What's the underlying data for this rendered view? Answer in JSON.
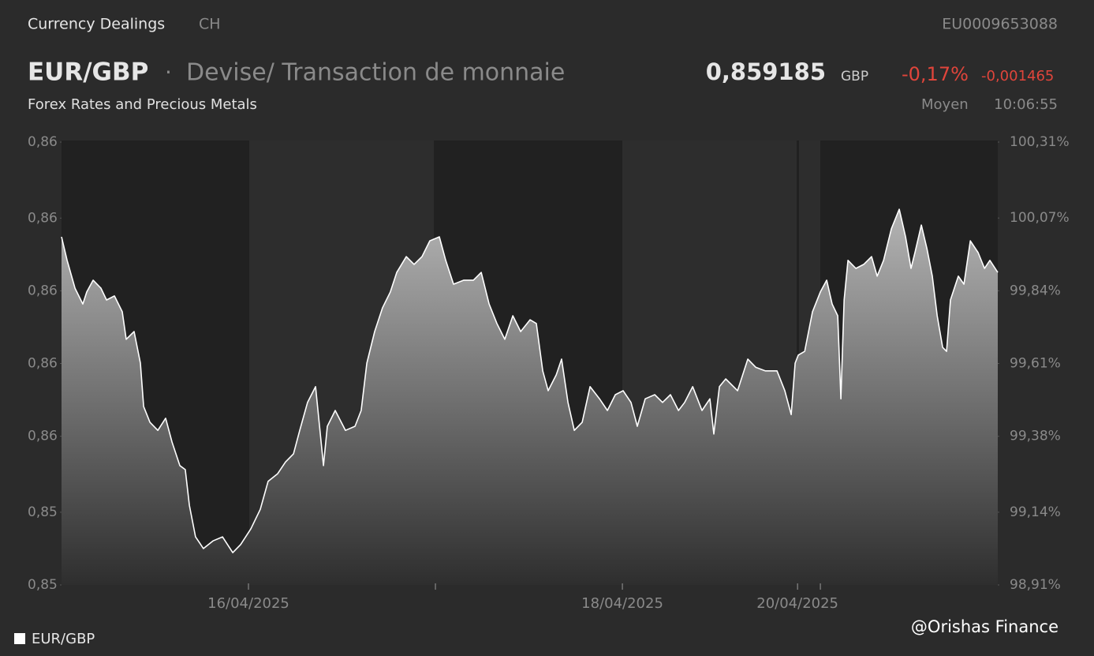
{
  "header": {
    "source": "Currency Dealings",
    "market": "CH",
    "isin": "EU0009653088",
    "symbol": "EUR/GBP",
    "description": "Devise/ Transaction de monnaie",
    "price": "0,859185",
    "currency": "GBP",
    "change_pct": "-0,17%",
    "change_abs": "-0,001465",
    "category": "Forex Rates and Precious Metals",
    "price_type": "Moyen",
    "time": "10:06:55"
  },
  "chart_data": {
    "type": "area",
    "x": [
      0,
      0.03,
      0.072,
      0.114,
      0.135,
      0.169,
      0.211,
      0.241,
      0.283,
      0.325,
      0.346,
      0.388,
      0.422,
      0.439,
      0.473,
      0.515,
      0.557,
      0.591,
      0.633,
      0.662,
      0.684,
      0.717,
      0.759,
      0.81,
      0.861,
      0.916,
      0.958,
      1.013,
      1.063,
      1.105,
      1.156,
      1.198,
      1.241,
      1.274,
      1.316,
      1.359,
      1.401,
      1.422,
      1.464,
      1.519,
      1.57,
      1.603,
      1.633,
      1.675,
      1.717,
      1.759,
      1.793,
      1.844,
      1.886,
      1.928,
      1.97,
      2.021,
      2.055,
      2.097,
      2.152,
      2.203,
      2.245,
      2.287,
      2.329,
      2.371,
      2.414,
      2.456,
      2.506,
      2.54,
      2.574,
      2.603,
      2.646,
      2.675,
      2.709,
      2.743,
      2.785,
      2.827,
      2.878,
      2.92,
      2.962,
      3.004,
      3.046,
      3.08,
      3.122,
      3.173,
      3.215,
      3.257,
      3.3,
      3.333,
      3.376,
      3.426,
      3.468,
      3.489,
      3.519,
      3.553,
      3.616,
      3.671,
      3.713,
      3.764,
      3.827,
      3.869,
      3.903,
      3.924,
      3.941,
      3.975,
      4.017,
      4.059,
      4.093,
      4.122,
      4.152,
      4.169,
      4.186,
      4.207,
      4.249,
      4.291,
      4.333,
      4.363,
      4.397,
      4.439,
      4.481,
      4.515,
      4.544,
      4.565,
      4.599,
      4.629,
      4.658,
      4.684,
      4.713,
      4.734,
      4.755,
      4.797,
      4.827,
      4.861,
      4.903,
      4.937,
      4.966,
      5.008
    ],
    "series": [
      {
        "name": "EUR/GBP",
        "color": "#ffffff",
        "values": [
          0.86129,
          0.86065,
          0.85989,
          0.85946,
          0.85979,
          0.86011,
          0.85989,
          0.85957,
          0.85968,
          0.85925,
          0.8585,
          0.85871,
          0.85785,
          0.85667,
          0.85624,
          0.85602,
          0.85635,
          0.8557,
          0.85506,
          0.85495,
          0.85398,
          0.85312,
          0.8528,
          0.85301,
          0.85312,
          0.85269,
          0.85291,
          0.85334,
          0.85387,
          0.85463,
          0.85484,
          0.85516,
          0.85538,
          0.85602,
          0.85678,
          0.85721,
          0.85506,
          0.85613,
          0.85656,
          0.85602,
          0.85613,
          0.85656,
          0.85785,
          0.85871,
          0.85936,
          0.85979,
          0.86032,
          0.86075,
          0.86054,
          0.86075,
          0.86118,
          0.86129,
          0.86065,
          0.86,
          0.86011,
          0.86011,
          0.86032,
          0.85946,
          0.85893,
          0.8585,
          0.85914,
          0.85871,
          0.85903,
          0.85893,
          0.85764,
          0.8571,
          0.85753,
          0.85796,
          0.85678,
          0.85602,
          0.85624,
          0.85721,
          0.85688,
          0.85656,
          0.85699,
          0.8571,
          0.85678,
          0.85613,
          0.85688,
          0.85699,
          0.85678,
          0.85699,
          0.85656,
          0.85678,
          0.85721,
          0.85656,
          0.85688,
          0.85592,
          0.85721,
          0.85742,
          0.8571,
          0.85796,
          0.85774,
          0.85764,
          0.85764,
          0.8571,
          0.85645,
          0.85785,
          0.85807,
          0.85817,
          0.85925,
          0.85979,
          0.86011,
          0.85946,
          0.85914,
          0.85688,
          0.85957,
          0.86065,
          0.86043,
          0.86054,
          0.86075,
          0.86022,
          0.86065,
          0.86151,
          0.86204,
          0.86129,
          0.86043,
          0.86086,
          0.86161,
          0.86097,
          0.86022,
          0.85914,
          0.85828,
          0.85817,
          0.85957,
          0.86022,
          0.86,
          0.86118,
          0.86086,
          0.86043,
          0.86065,
          0.86032
        ]
      }
    ],
    "xlim": [
      0,
      5.008
    ],
    "xticks": [
      {
        "value": 1,
        "label": "16/04/2025"
      },
      {
        "value": 2,
        "label": null
      },
      {
        "value": 3,
        "label": "18/04/2025"
      },
      {
        "value": 3.937,
        "label": "20/04/2025"
      },
      {
        "value": 4.059,
        "label": null
      }
    ],
    "ylim": [
      0.85181,
      0.86387
    ],
    "yticks": [
      {
        "value": 0.86387,
        "label": "0,86"
      },
      {
        "value": 0.8618,
        "label": "0,86"
      },
      {
        "value": 0.85982,
        "label": "0,86"
      },
      {
        "value": 0.85784,
        "label": "0,86"
      },
      {
        "value": 0.85586,
        "label": "0,86"
      },
      {
        "value": 0.85379,
        "label": "0,85"
      },
      {
        "value": 0.85181,
        "label": "0,85"
      }
    ],
    "y2lim": [
      98.91,
      100.31
    ],
    "y2ticks": [
      {
        "value": 100.31,
        "label": "100,31%"
      },
      {
        "value": 100.07,
        "label": "100,07%"
      },
      {
        "value": 99.84,
        "label": "99,84%"
      },
      {
        "value": 99.61,
        "label": "99,61%"
      },
      {
        "value": 99.38,
        "label": "99,38%"
      },
      {
        "value": 99.14,
        "label": "99,14%"
      },
      {
        "value": 98.91,
        "label": "98,91%"
      }
    ],
    "legend": "bottom-left"
  },
  "footer": {
    "watermark": "@Orishas Finance"
  }
}
